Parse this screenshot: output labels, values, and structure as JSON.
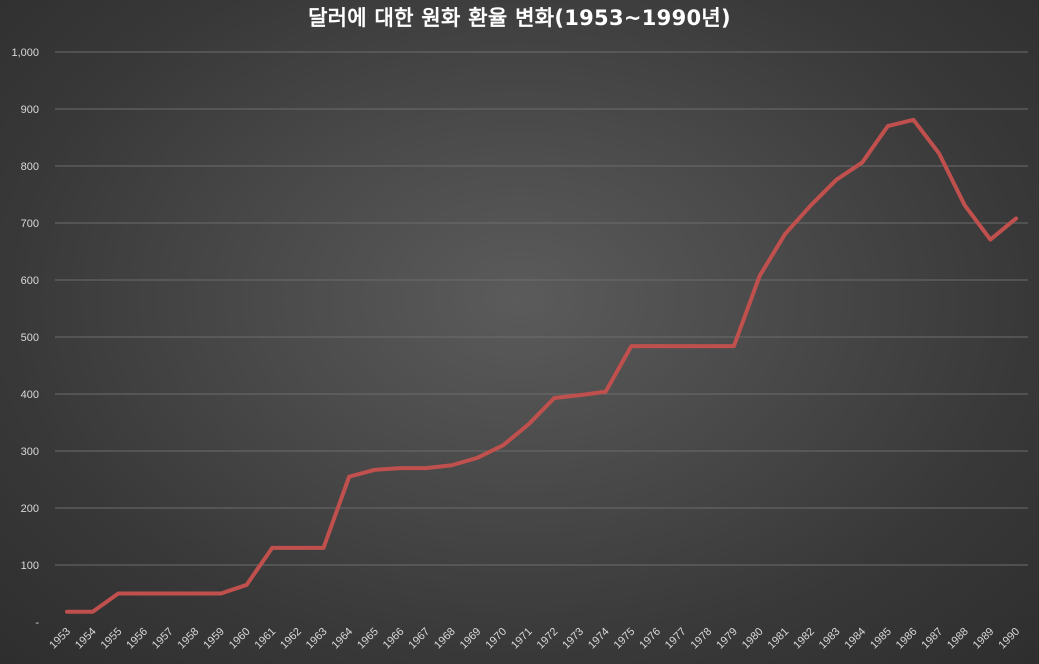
{
  "chart_data": {
    "type": "line",
    "title": "달러에 대한 원화 환율 변화(1953~1990년)",
    "xlabel": "",
    "ylabel": "",
    "ylim": [
      0,
      1000
    ],
    "y_ticks": [
      "-",
      "100",
      "200",
      "300",
      "400",
      "500",
      "600",
      "700",
      "800",
      "900",
      "1,000"
    ],
    "grid": true,
    "legend": "none",
    "line_color": "#c0504d",
    "categories": [
      "1953",
      "1954",
      "1955",
      "1956",
      "1957",
      "1958",
      "1959",
      "1960",
      "1961",
      "1962",
      "1963",
      "1964",
      "1965",
      "1966",
      "1967",
      "1968",
      "1969",
      "1970",
      "1971",
      "1972",
      "1973",
      "1974",
      "1975",
      "1976",
      "1977",
      "1978",
      "1979",
      "1980",
      "1981",
      "1982",
      "1983",
      "1984",
      "1985",
      "1986",
      "1987",
      "1988",
      "1989",
      "1990"
    ],
    "series": [
      {
        "values": [
          18,
          18,
          50,
          50,
          50,
          50,
          50,
          65,
          130,
          130,
          130,
          255,
          267,
          270,
          270,
          275,
          288,
          310,
          347,
          393,
          398,
          404,
          484,
          484,
          484,
          484,
          484,
          607,
          681,
          731,
          776,
          806,
          870,
          881,
          822,
          731,
          671,
          708
        ]
      }
    ]
  }
}
